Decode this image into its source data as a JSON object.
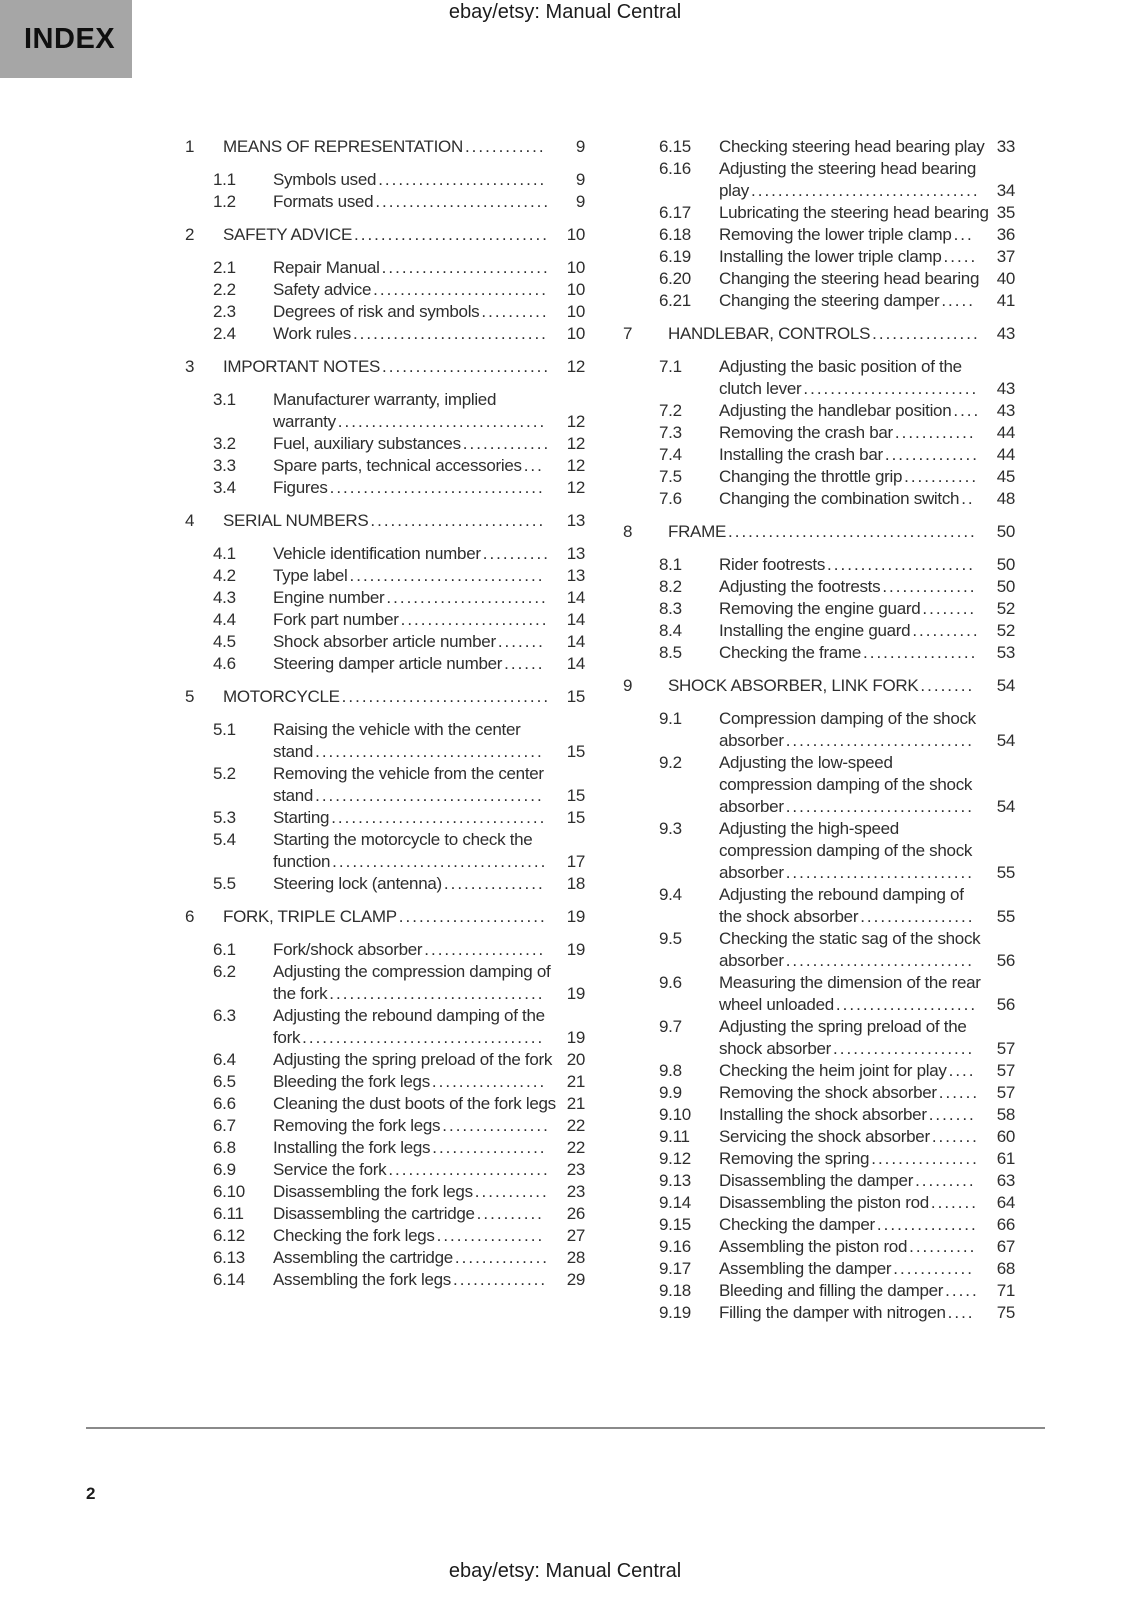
{
  "header": {
    "doc_title": "ebay/etsy: Manual Central",
    "index_label": "INDEX"
  },
  "footer": {
    "doc_title": "ebay/etsy: Manual Central",
    "page_number": "2"
  },
  "colors": {
    "index_box": "#a6a6a6",
    "text": "#2e2e2e",
    "rule": "#8a8a8a"
  },
  "toc": {
    "left_column": [
      {
        "number": "1",
        "title": "MEANS OF REPRESENTATION",
        "page": "9",
        "items": [
          {
            "number": "1.1",
            "title": "Symbols used",
            "page": "9"
          },
          {
            "number": "1.2",
            "title": "Formats used",
            "page": "9"
          }
        ]
      },
      {
        "number": "2",
        "title": "SAFETY ADVICE",
        "page": "10",
        "items": [
          {
            "number": "2.1",
            "title": "Repair Manual",
            "page": "10"
          },
          {
            "number": "2.2",
            "title": "Safety advice",
            "page": "10"
          },
          {
            "number": "2.3",
            "title": "Degrees of risk and symbols",
            "page": "10"
          },
          {
            "number": "2.4",
            "title": "Work rules",
            "page": "10"
          }
        ]
      },
      {
        "number": "3",
        "title": "IMPORTANT NOTES",
        "page": "12",
        "items": [
          {
            "number": "3.1",
            "title": "Manufacturer warranty, implied warranty",
            "page": "12"
          },
          {
            "number": "3.2",
            "title": "Fuel, auxiliary substances",
            "page": "12"
          },
          {
            "number": "3.3",
            "title": "Spare parts, technical accessories",
            "page": "12"
          },
          {
            "number": "3.4",
            "title": "Figures",
            "page": "12"
          }
        ]
      },
      {
        "number": "4",
        "title": "SERIAL NUMBERS",
        "page": "13",
        "items": [
          {
            "number": "4.1",
            "title": "Vehicle identification number",
            "page": "13"
          },
          {
            "number": "4.2",
            "title": "Type label",
            "page": "13"
          },
          {
            "number": "4.3",
            "title": "Engine number",
            "page": "14"
          },
          {
            "number": "4.4",
            "title": "Fork part number",
            "page": "14"
          },
          {
            "number": "4.5",
            "title": "Shock absorber article number",
            "page": "14"
          },
          {
            "number": "4.6",
            "title": "Steering damper article number",
            "page": "14"
          }
        ]
      },
      {
        "number": "5",
        "title": "MOTORCYCLE",
        "page": "15",
        "items": [
          {
            "number": "5.1",
            "title": "Raising the vehicle with the center stand",
            "page": "15"
          },
          {
            "number": "5.2",
            "title": "Removing the vehicle from the center stand",
            "page": "15"
          },
          {
            "number": "5.3",
            "title": "Starting",
            "page": "15"
          },
          {
            "number": "5.4",
            "title": "Starting the motorcycle to check the function",
            "page": "17"
          },
          {
            "number": "5.5",
            "title": "Steering lock (antenna)",
            "page": "18"
          }
        ]
      },
      {
        "number": "6",
        "title": "FORK, TRIPLE CLAMP",
        "page": "19",
        "items": [
          {
            "number": "6.1",
            "title": "Fork/shock absorber",
            "page": "19"
          },
          {
            "number": "6.2",
            "title": "Adjusting the compression damping of the fork",
            "page": "19"
          },
          {
            "number": "6.3",
            "title": "Adjusting the rebound damping of the fork",
            "page": "19"
          },
          {
            "number": "6.4",
            "title": "Adjusting the spring preload of the fork",
            "page": "20"
          },
          {
            "number": "6.5",
            "title": "Bleeding the fork legs",
            "page": "21"
          },
          {
            "number": "6.6",
            "title": "Cleaning the dust boots of the fork legs",
            "page": "21"
          },
          {
            "number": "6.7",
            "title": "Removing the fork legs",
            "page": "22"
          },
          {
            "number": "6.8",
            "title": "Installing the fork legs",
            "page": "22"
          },
          {
            "number": "6.9",
            "title": "Service the fork",
            "page": "23"
          },
          {
            "number": "6.10",
            "title": "Disassembling the fork legs",
            "page": "23"
          },
          {
            "number": "6.11",
            "title": "Disassembling the cartridge",
            "page": "26"
          },
          {
            "number": "6.12",
            "title": "Checking the fork legs",
            "page": "27"
          },
          {
            "number": "6.13",
            "title": "Assembling the cartridge",
            "page": "28"
          },
          {
            "number": "6.14",
            "title": "Assembling the fork legs",
            "page": "29"
          }
        ]
      }
    ],
    "right_column": [
      {
        "items": [
          {
            "number": "6.15",
            "title": "Checking steering head bearing play",
            "page": "33"
          },
          {
            "number": "6.16",
            "title": "Adjusting the steering head bearing play",
            "page": "34"
          },
          {
            "number": "6.17",
            "title": "Lubricating the steering head bearing",
            "page": "35"
          },
          {
            "number": "6.18",
            "title": "Removing the lower triple clamp",
            "page": "36"
          },
          {
            "number": "6.19",
            "title": "Installing the lower triple clamp",
            "page": "37"
          },
          {
            "number": "6.20",
            "title": "Changing the steering head bearing",
            "page": "40"
          },
          {
            "number": "6.21",
            "title": "Changing the steering damper",
            "page": "41"
          }
        ]
      },
      {
        "number": "7",
        "title": "HANDLEBAR, CONTROLS",
        "page": "43",
        "items": [
          {
            "number": "7.1",
            "title": "Adjusting the basic position of the clutch lever",
            "page": "43"
          },
          {
            "number": "7.2",
            "title": "Adjusting the handlebar position",
            "page": "43"
          },
          {
            "number": "7.3",
            "title": "Removing the crash bar",
            "page": "44"
          },
          {
            "number": "7.4",
            "title": "Installing the crash bar",
            "page": "44"
          },
          {
            "number": "7.5",
            "title": "Changing the throttle grip",
            "page": "45"
          },
          {
            "number": "7.6",
            "title": "Changing the combination switch",
            "page": "48"
          }
        ]
      },
      {
        "number": "8",
        "title": "FRAME",
        "page": "50",
        "items": [
          {
            "number": "8.1",
            "title": "Rider footrests",
            "page": "50"
          },
          {
            "number": "8.2",
            "title": "Adjusting the footrests",
            "page": "50"
          },
          {
            "number": "8.3",
            "title": "Removing the engine guard",
            "page": "52"
          },
          {
            "number": "8.4",
            "title": "Installing the engine guard",
            "page": "52"
          },
          {
            "number": "8.5",
            "title": "Checking the frame",
            "page": "53"
          }
        ]
      },
      {
        "number": "9",
        "title": "SHOCK ABSORBER, LINK FORK",
        "page": "54",
        "items": [
          {
            "number": "9.1",
            "title": "Compression damping of the shock absorber",
            "page": "54"
          },
          {
            "number": "9.2",
            "title": "Adjusting the low-speed compression damping of the shock absorber",
            "page": "54"
          },
          {
            "number": "9.3",
            "title": "Adjusting the high-speed compression damping of the shock absorber",
            "page": "55"
          },
          {
            "number": "9.4",
            "title": "Adjusting the rebound damping of the shock absorber",
            "page": "55"
          },
          {
            "number": "9.5",
            "title": "Checking the static sag of the shock absorber",
            "page": "56"
          },
          {
            "number": "9.6",
            "title": "Measuring the dimension of the rear wheel unloaded",
            "page": "56"
          },
          {
            "number": "9.7",
            "title": "Adjusting the spring preload of the shock absorber",
            "page": "57"
          },
          {
            "number": "9.8",
            "title": "Checking the heim joint for play",
            "page": "57"
          },
          {
            "number": "9.9",
            "title": "Removing the shock absorber",
            "page": "57"
          },
          {
            "number": "9.10",
            "title": "Installing the shock absorber",
            "page": "58"
          },
          {
            "number": "9.11",
            "title": "Servicing the shock absorber",
            "page": "60"
          },
          {
            "number": "9.12",
            "title": "Removing the spring",
            "page": "61"
          },
          {
            "number": "9.13",
            "title": "Disassembling the damper",
            "page": "63"
          },
          {
            "number": "9.14",
            "title": "Disassembling the piston rod",
            "page": "64"
          },
          {
            "number": "9.15",
            "title": "Checking the damper",
            "page": "66"
          },
          {
            "number": "9.16",
            "title": "Assembling the piston rod",
            "page": "67"
          },
          {
            "number": "9.17",
            "title": "Assembling the damper",
            "page": "68"
          },
          {
            "number": "9.18",
            "title": "Bleeding and filling the damper",
            "page": "71"
          },
          {
            "number": "9.19",
            "title": "Filling the damper with nitrogen",
            "page": "75"
          }
        ]
      }
    ]
  }
}
